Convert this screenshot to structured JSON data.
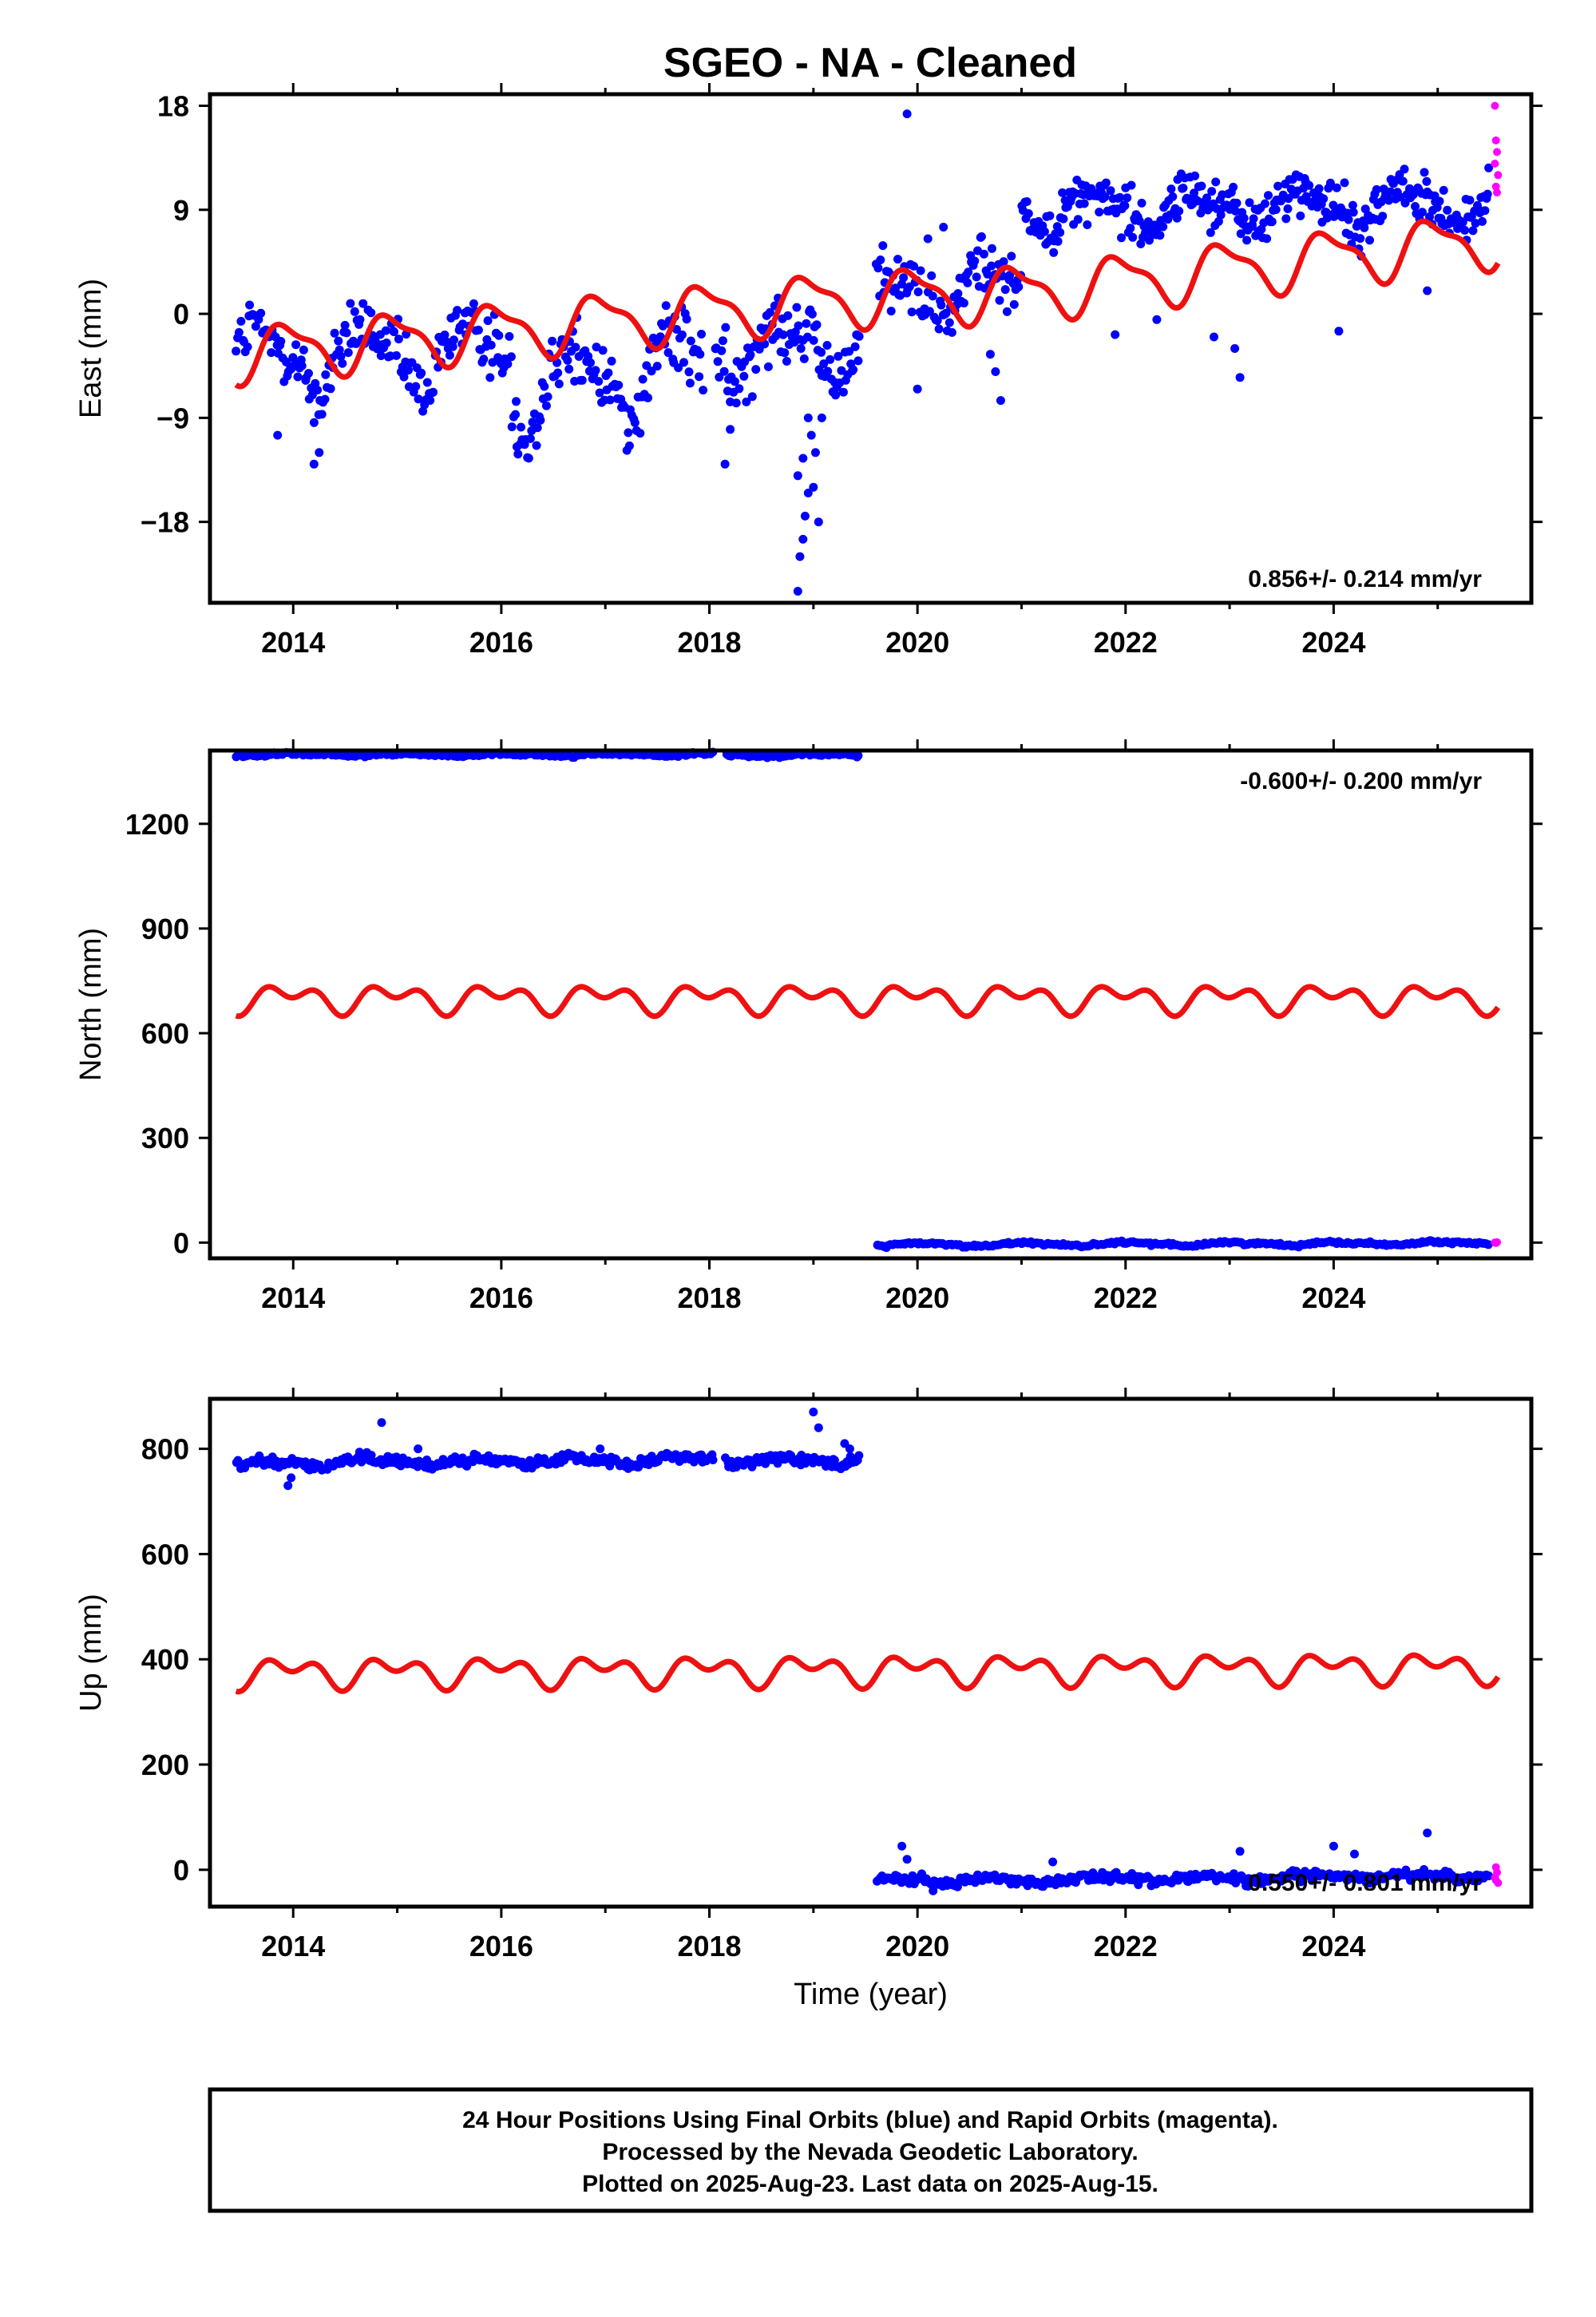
{
  "title": "SGEO  - NA - Cleaned",
  "colors": {
    "final": "#0000ff",
    "rapid": "#ff00ff",
    "model": "#ee1111",
    "axes": "#000000"
  },
  "caption": [
    "24 Hour Positions Using Final Orbits (blue) and Rapid Orbits (magenta).",
    "Processed by the Nevada Geodetic Laboratory.",
    "Plotted on 2025-Aug-23. Last data on 2025-Aug-15."
  ],
  "chart_data": [
    {
      "type": "scatter",
      "panel": "east",
      "ylabel": "East (mm)",
      "xlabel": "",
      "xlim": [
        2013.2,
        2025.9
      ],
      "ylim": [
        -25,
        19
      ],
      "xticks": [
        2014,
        2016,
        2018,
        2020,
        2022,
        2024
      ],
      "xtick_labels": [
        "2014",
        "2016",
        "2018",
        "2020",
        "2022",
        "2024"
      ],
      "yticks": [
        18,
        9,
        0,
        -9,
        -18
      ],
      "ytick_labels": [
        "18",
        "9",
        "0",
        "−9",
        "−18"
      ],
      "rate_label": "0.856+/- 0.214 mm/yr",
      "rate_position": "bottom-right",
      "grid": false,
      "series": [
        {
          "role": "final",
          "segments": [
            {
              "x0": 2013.45,
              "x1": 2016.1,
              "base": -4.0,
              "trend": 0.3,
              "amp": 2.6,
              "phase": 0.55,
              "noise": 2.0,
              "density": 70
            },
            {
              "x0": 2016.1,
              "x1": 2017.95,
              "base": -6.5,
              "trend": 1.2,
              "amp": 2.8,
              "phase": 0.55,
              "noise": 2.2,
              "density": 70
            },
            {
              "x0": 2018.05,
              "x1": 2019.45,
              "base": -3.0,
              "trend": 0.4,
              "amp": 2.5,
              "phase": 0.55,
              "noise": 2.3,
              "density": 70
            },
            {
              "x0": 2019.6,
              "x1": 2021.0,
              "base": 1.8,
              "trend": 0.4,
              "amp": 2.0,
              "phase": 0.55,
              "noise": 1.8,
              "density": 70
            },
            {
              "x0": 2021.0,
              "x1": 2025.5,
              "base": 9.0,
              "trend": 0.1,
              "amp": 1.3,
              "phase": 0.55,
              "noise": 1.5,
              "density": 80
            }
          ]
        },
        {
          "role": "outliers",
          "points": [
            [
              2019.9,
              17.3
            ],
            [
              2018.85,
              -24.0
            ],
            [
              2018.87,
              -21.0
            ],
            [
              2018.9,
              -19.5
            ],
            [
              2018.92,
              -17.5
            ],
            [
              2018.95,
              -15.5
            ],
            [
              2018.85,
              -14.0
            ],
            [
              2018.9,
              -12.5
            ],
            [
              2019.05,
              -18.0
            ],
            [
              2019.0,
              -15.0
            ],
            [
              2019.02,
              -12.0
            ],
            [
              2018.98,
              -10.5
            ],
            [
              2018.95,
              -9.0
            ],
            [
              2019.08,
              -9.0
            ],
            [
              2018.15,
              -13.0
            ],
            [
              2018.2,
              -10.0
            ],
            [
              2014.2,
              -13.0
            ],
            [
              2014.25,
              -12.0
            ],
            [
              2013.85,
              -10.5
            ],
            [
              2016.15,
              -11.5
            ],
            [
              2020.8,
              -7.5
            ],
            [
              2020.1,
              6.5
            ],
            [
              2020.25,
              7.5
            ],
            [
              2020.0,
              -6.5
            ],
            [
              2021.9,
              -1.8
            ],
            [
              2022.3,
              -0.5
            ],
            [
              2022.85,
              -2.0
            ],
            [
              2023.1,
              -5.5
            ],
            [
              2023.05,
              -3.0
            ],
            [
              2024.05,
              -1.5
            ],
            [
              2024.9,
              2.0
            ],
            [
              2020.7,
              -3.5
            ],
            [
              2020.75,
              -5.0
            ]
          ]
        },
        {
          "role": "rapid",
          "points": [
            [
              2025.55,
              18.0
            ],
            [
              2025.56,
              15.0
            ],
            [
              2025.57,
              14.0
            ],
            [
              2025.55,
              13.0
            ],
            [
              2025.58,
              12.0
            ],
            [
              2025.56,
              11.0
            ],
            [
              2025.57,
              10.5
            ]
          ]
        },
        {
          "role": "model",
          "x0": 2013.45,
          "x1": 2025.58,
          "knots": [
            [
              2013.45,
              -3.5
            ],
            [
              2019.6,
              1.5
            ],
            [
              2021.0,
              1.8
            ],
            [
              2025.58,
              6.5
            ]
          ],
          "amp": 2.2,
          "phase": 0.3
        }
      ]
    },
    {
      "type": "scatter",
      "panel": "north",
      "ylabel": "North (mm)",
      "xlabel": "",
      "xlim": [
        2013.2,
        2025.9
      ],
      "ylim": [
        -45,
        1410
      ],
      "xticks": [
        2014,
        2016,
        2018,
        2020,
        2022,
        2024
      ],
      "xtick_labels": [
        "2014",
        "2016",
        "2018",
        "2020",
        "2022",
        "2024"
      ],
      "yticks": [
        1200,
        900,
        600,
        300,
        0
      ],
      "ytick_labels": [
        "1200",
        "900",
        "600",
        "300",
        "0"
      ],
      "rate_label": "-0.600+/- 0.200 mm/yr",
      "rate_position": "top-right",
      "grid": false,
      "series": [
        {
          "role": "final",
          "segments": [
            {
              "x0": 2013.45,
              "x1": 2018.05,
              "base": 1398,
              "trend": 0,
              "amp": 3,
              "phase": 0.2,
              "noise": 3,
              "density": 45
            },
            {
              "x0": 2018.15,
              "x1": 2019.45,
              "base": 1397,
              "trend": 0,
              "amp": 3,
              "phase": 0.2,
              "noise": 3,
              "density": 45
            },
            {
              "x0": 2019.6,
              "x1": 2025.5,
              "base": -6,
              "trend": 0.8,
              "amp": 4,
              "phase": 0.2,
              "noise": 3,
              "density": 45
            }
          ]
        },
        {
          "role": "rapid",
          "points": [
            [
              2025.56,
              -1
            ],
            [
              2025.57,
              1
            ],
            [
              2025.55,
              0
            ]
          ]
        },
        {
          "role": "model",
          "x0": 2013.45,
          "x1": 2025.58,
          "knots": [
            [
              2013.45,
              700
            ],
            [
              2025.58,
              700
            ]
          ],
          "amp": 45,
          "phase": 0.3,
          "shape": "dip"
        }
      ]
    },
    {
      "type": "scatter",
      "panel": "up",
      "ylabel": "Up (mm)",
      "xlabel": "Time (year)",
      "xlim": [
        2013.2,
        2025.9
      ],
      "ylim": [
        -70,
        895
      ],
      "xticks": [
        2014,
        2016,
        2018,
        2020,
        2022,
        2024
      ],
      "xtick_labels": [
        "2014",
        "2016",
        "2018",
        "2020",
        "2022",
        "2024"
      ],
      "yticks": [
        800,
        600,
        400,
        200,
        0
      ],
      "ytick_labels": [
        "800",
        "600",
        "400",
        "200",
        "0"
      ],
      "rate_label": "0.550+/- 0.801 mm/yr",
      "rate_position": "bottom-right",
      "grid": false,
      "series": [
        {
          "role": "final",
          "segments": [
            {
              "x0": 2013.45,
              "x1": 2018.05,
              "base": 772,
              "trend": 1.5,
              "amp": 6,
              "phase": 0.5,
              "noise": 7,
              "density": 60
            },
            {
              "x0": 2018.15,
              "x1": 2019.45,
              "base": 778,
              "trend": 1.0,
              "amp": 6,
              "phase": 0.5,
              "noise": 8,
              "density": 60
            },
            {
              "x0": 2019.6,
              "x1": 2025.5,
              "base": -22,
              "trend": 2.0,
              "amp": 5,
              "phase": 0.5,
              "noise": 7,
              "density": 60
            }
          ]
        },
        {
          "role": "outliers",
          "points": [
            [
              2014.85,
              850
            ],
            [
              2019.0,
              870
            ],
            [
              2019.05,
              840
            ],
            [
              2013.95,
              730
            ],
            [
              2013.98,
              745
            ],
            [
              2015.2,
              800
            ],
            [
              2016.95,
              800
            ],
            [
              2019.3,
              810
            ],
            [
              2019.35,
              800
            ],
            [
              2019.85,
              45
            ],
            [
              2019.9,
              20
            ],
            [
              2020.15,
              -40
            ],
            [
              2023.1,
              35
            ],
            [
              2024.9,
              70
            ],
            [
              2024.0,
              45
            ],
            [
              2024.2,
              30
            ],
            [
              2021.3,
              15
            ]
          ]
        },
        {
          "role": "rapid",
          "points": [
            [
              2025.56,
              5
            ],
            [
              2025.57,
              -5
            ],
            [
              2025.55,
              -15
            ],
            [
              2025.58,
              -25
            ],
            [
              2025.56,
              -20
            ]
          ]
        },
        {
          "role": "model",
          "x0": 2013.45,
          "x1": 2025.58,
          "knots": [
            [
              2013.45,
              375
            ],
            [
              2025.58,
              385
            ]
          ],
          "amp": 32,
          "phase": 0.3,
          "shape": "dip"
        }
      ]
    }
  ]
}
